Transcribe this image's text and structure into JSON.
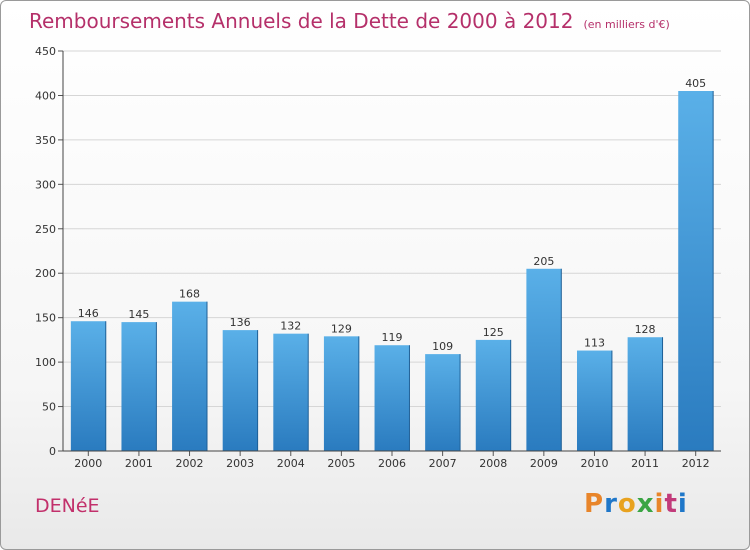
{
  "title": "Remboursements Annuels de la Dette de 2000 à 2012",
  "unit": "(en milliers d'€)",
  "commune": "DENéE",
  "logo": {
    "text": "Proxiti",
    "colors": [
      "#e8852a",
      "#1f77c9",
      "#e8a21f",
      "#3aa544",
      "#e8852a",
      "#c23a7a",
      "#1f77c9"
    ]
  },
  "colors": {
    "bar_light": "#5ab0e8",
    "bar_dark": "#2a7bbf",
    "title": "#b5306a",
    "grid": "#d6d6d6"
  },
  "chart_data": {
    "type": "bar",
    "categories": [
      "2000",
      "2001",
      "2002",
      "2003",
      "2004",
      "2005",
      "2006",
      "2007",
      "2008",
      "2009",
      "2010",
      "2011",
      "2012"
    ],
    "values": [
      146,
      145,
      168,
      136,
      132,
      129,
      119,
      109,
      125,
      205,
      113,
      128,
      405
    ],
    "yticks": [
      "0",
      "50",
      "100",
      "150",
      "200",
      "250",
      "300",
      "350",
      "400",
      "450"
    ],
    "ylim": [
      0,
      450
    ],
    "grid": true,
    "data_labels": true
  }
}
